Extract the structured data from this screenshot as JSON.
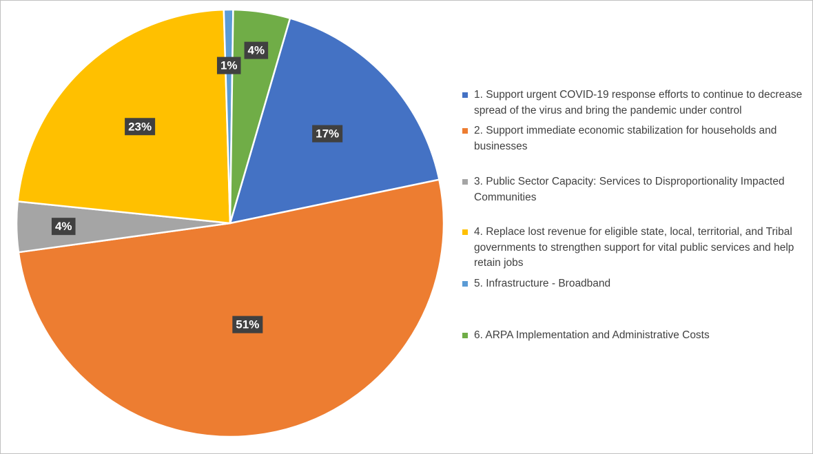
{
  "chart_data": {
    "type": "pie",
    "title": "",
    "start_angle_deg": 16.3,
    "direction": "clockwise",
    "categories": [
      "1. Support urgent COVID-19 response efforts to continue to decrease spread of the virus and bring the pandemic under control",
      "2. Support immediate economic stabilization for households and businesses",
      "3. Public Sector Capacity: Services to Disproportionality Impacted Communities",
      "4. Replace lost revenue for eligible state, local, territorial, and Tribal governments to strengthen support for vital public services and help retain jobs",
      "5. Infrastructure - Broadband",
      "6. ARPA Implementation and Administrative Costs"
    ],
    "values": [
      17.2,
      51.1,
      3.8,
      22.9,
      0.7,
      4.3
    ],
    "data_labels": [
      "17%",
      "51%",
      "4%",
      "23%",
      "1%",
      "4%"
    ],
    "colors": [
      "#4472C4",
      "#ED7D31",
      "#A5A5A5",
      "#FFC000",
      "#5B9BD5",
      "#70AD47"
    ],
    "legend": {
      "position": "right"
    }
  }
}
